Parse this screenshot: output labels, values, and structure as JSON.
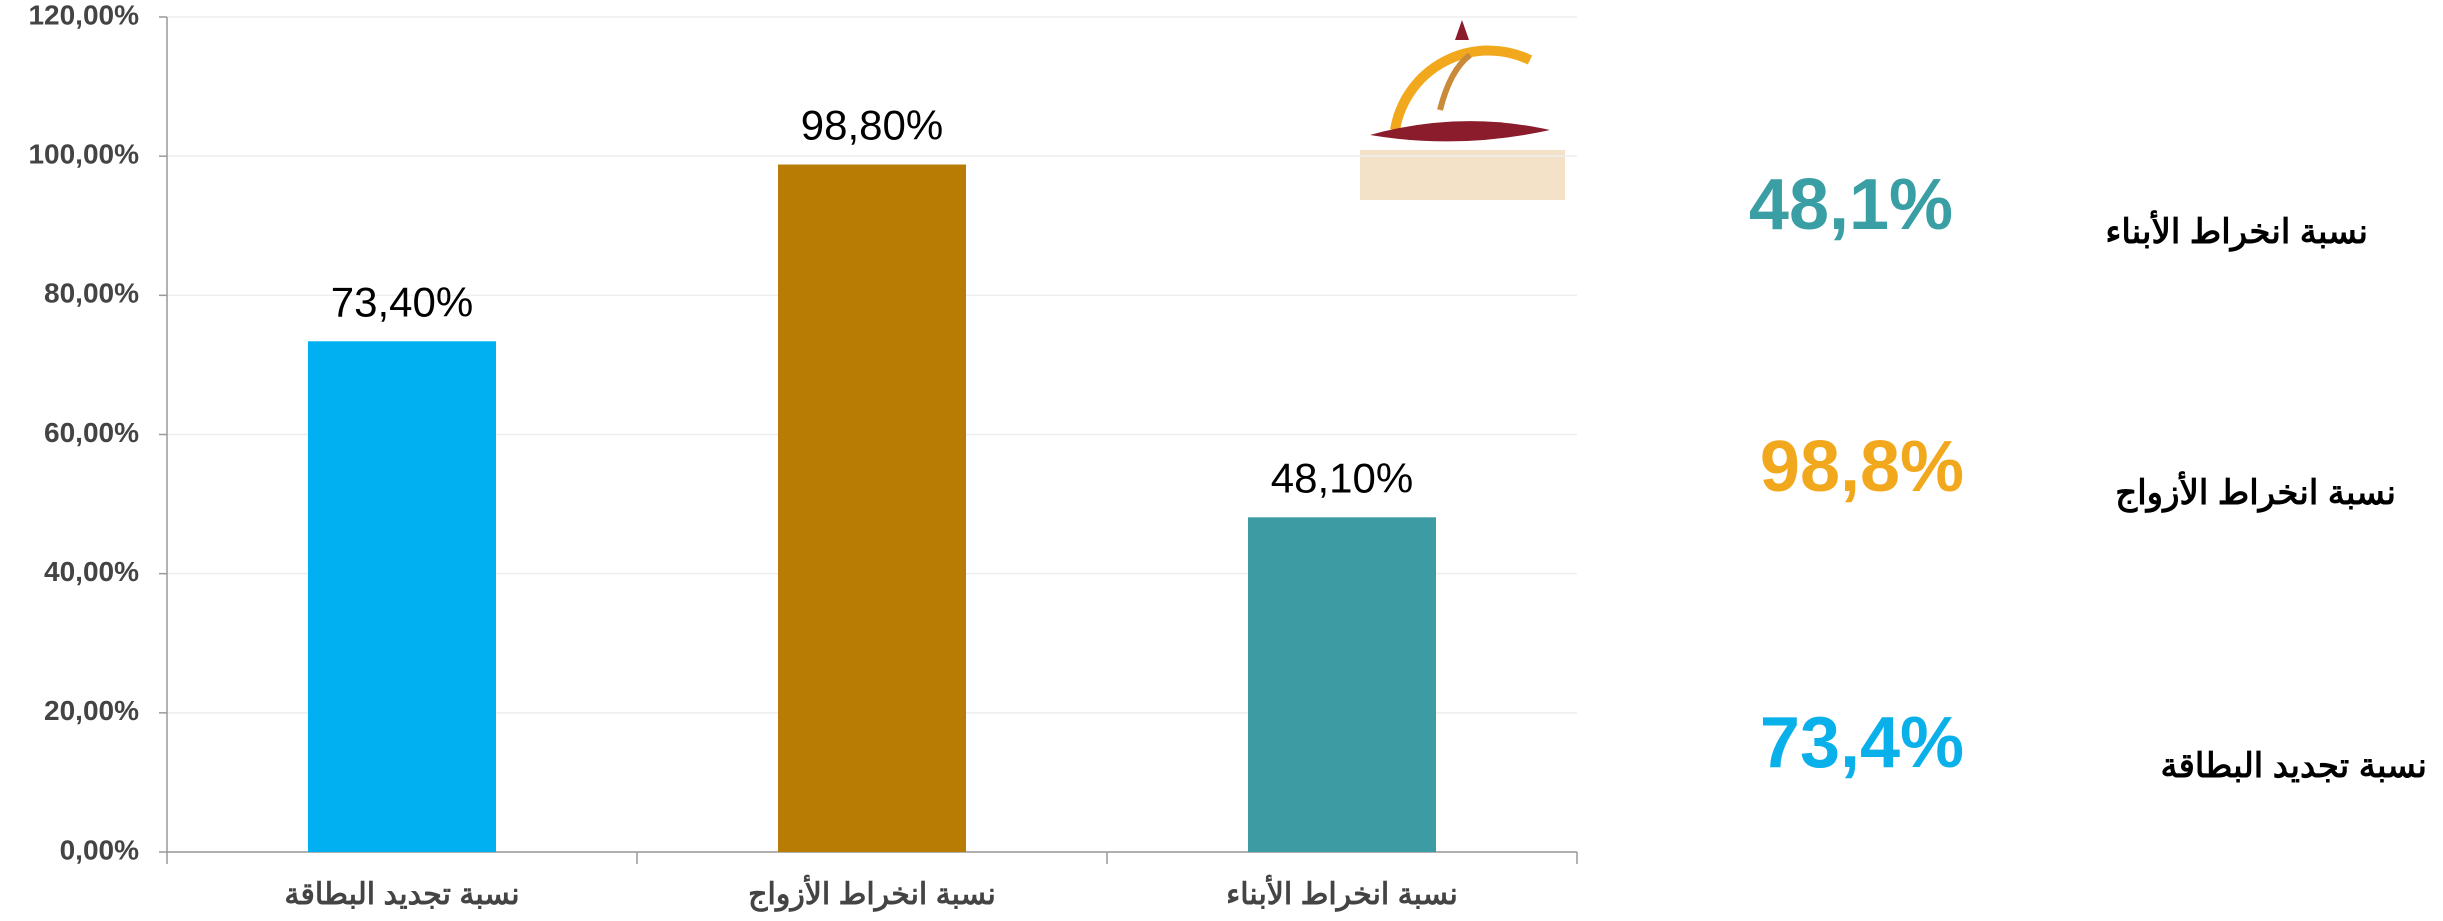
{
  "chart_data": {
    "type": "bar",
    "categories": [
      "نسبة تجديد البطاقة",
      "نسبة انخراط الأزواج",
      "نسبة انخراط الأبناء"
    ],
    "values": [
      73.4,
      98.8,
      48.1
    ],
    "value_labels": [
      "73,40%",
      "98,80%",
      "48,10%"
    ],
    "colors": [
      "#00b0f0",
      "#b87c05",
      "#3d9ca3"
    ],
    "ylim": [
      0,
      120
    ],
    "yticks": [
      {
        "value": 0,
        "label": "0,00%"
      },
      {
        "value": 20,
        "label": "20,00%"
      },
      {
        "value": 40,
        "label": "40,00%"
      },
      {
        "value": 60,
        "label": "60,00%"
      },
      {
        "value": 80,
        "label": "80,00%"
      },
      {
        "value": 100,
        "label": "100,00%"
      },
      {
        "value": 120,
        "label": "120,00%"
      }
    ],
    "grid": true
  },
  "summary": [
    {
      "label": "نسبة انخراط الأبناء",
      "value": "48,1%",
      "color": "#3a9ea5"
    },
    {
      "label": "نسبة انخراط الأزواج",
      "value": "98,8%",
      "color": "#f2a81d"
    },
    {
      "label": "نسبة تجديد البطاقة",
      "value": "73,4%",
      "color": "#0ab0ea"
    }
  ]
}
